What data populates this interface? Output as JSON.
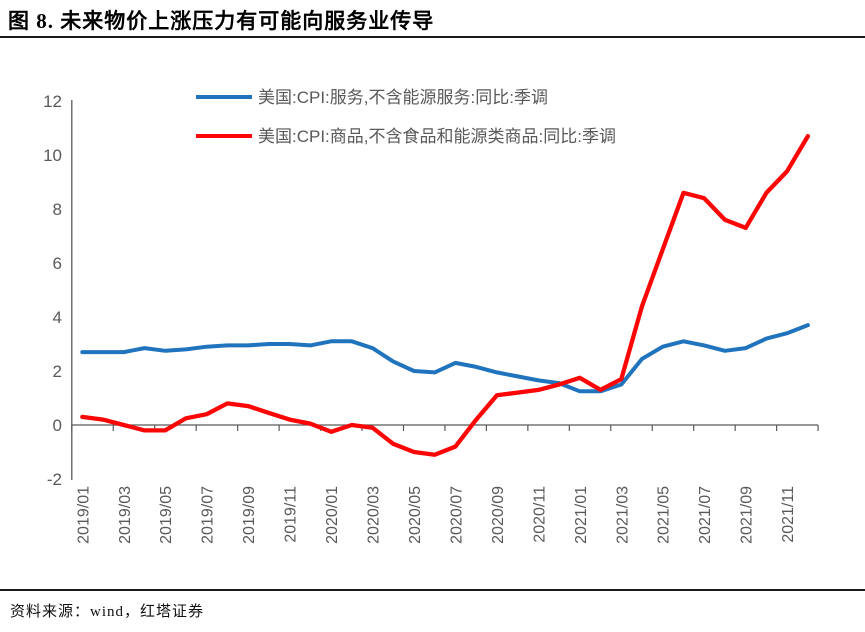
{
  "title": "图 8. 未来物价上涨压力有可能向服务业传导",
  "source": "资料来源：wind，红塔证券",
  "colors": {
    "services_line": "#2073BD",
    "goods_line": "#FB0505",
    "axis": "#595959",
    "tick_label": "#595959",
    "legend_text": "#595959"
  },
  "chart_data": {
    "type": "line",
    "title": "",
    "xlabel": "",
    "ylabel": "",
    "ylim": [
      -2,
      12
    ],
    "yticks": [
      -2,
      0,
      2,
      4,
      6,
      8,
      10,
      12
    ],
    "grid": false,
    "legend_position": "top",
    "x": [
      "2019/01",
      "2019/02",
      "2019/03",
      "2019/04",
      "2019/05",
      "2019/06",
      "2019/07",
      "2019/08",
      "2019/09",
      "2019/10",
      "2019/11",
      "2019/12",
      "2020/01",
      "2020/02",
      "2020/03",
      "2020/04",
      "2020/05",
      "2020/06",
      "2020/07",
      "2020/08",
      "2020/09",
      "2020/10",
      "2020/11",
      "2020/12",
      "2021/01",
      "2021/02",
      "2021/03",
      "2021/04",
      "2021/05",
      "2021/06",
      "2021/07",
      "2021/08",
      "2021/09",
      "2021/10",
      "2021/11",
      "2021/12"
    ],
    "x_tick_labels": [
      "2019/01",
      "2019/03",
      "2019/05",
      "2019/07",
      "2019/09",
      "2019/11",
      "2020/01",
      "2020/03",
      "2020/05",
      "2020/07",
      "2020/09",
      "2020/11",
      "2021/01",
      "2021/03",
      "2021/05",
      "2021/07",
      "2021/09",
      "2021/11"
    ],
    "series": [
      {
        "name": "美国:CPI:服务,不含能源服务:同比:季调",
        "color": "#2073BD",
        "values": [
          2.7,
          2.7,
          2.7,
          2.85,
          2.75,
          2.8,
          2.9,
          2.95,
          2.95,
          3.0,
          3.0,
          2.95,
          3.1,
          3.1,
          2.85,
          2.35,
          2.0,
          1.95,
          2.3,
          2.15,
          1.95,
          1.8,
          1.65,
          1.55,
          1.25,
          1.25,
          1.5,
          2.45,
          2.9,
          3.1,
          2.95,
          2.75,
          2.85,
          3.2,
          3.4,
          3.7
        ]
      },
      {
        "name": "美国:CPI:商品,不含食品和能源类商品:同比:季调",
        "color": "#FB0505",
        "values": [
          0.3,
          0.2,
          0.0,
          -0.2,
          -0.2,
          0.25,
          0.4,
          0.8,
          0.7,
          0.45,
          0.2,
          0.05,
          -0.25,
          0.0,
          -0.1,
          -0.7,
          -1.0,
          -1.1,
          -0.8,
          0.2,
          1.1,
          1.2,
          1.3,
          1.5,
          1.75,
          1.3,
          1.7,
          4.4,
          6.5,
          8.6,
          8.4,
          7.6,
          7.3,
          8.6,
          9.4,
          10.7
        ]
      }
    ]
  }
}
